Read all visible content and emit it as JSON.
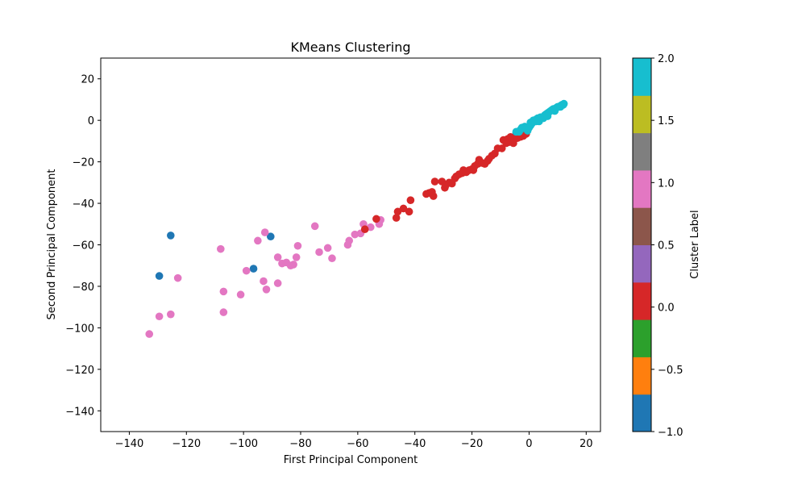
{
  "chart_data": {
    "type": "scatter",
    "title": "KMeans Clustering",
    "xlabel": "First Principal Component",
    "ylabel": "Second Principal Component",
    "xlim": [
      -150,
      25
    ],
    "ylim": [
      -150,
      30
    ],
    "xticks": [
      -140,
      -120,
      -100,
      -80,
      -60,
      -40,
      -20,
      0,
      20
    ],
    "yticks": [
      -140,
      -120,
      -100,
      -80,
      -60,
      -40,
      -20,
      0,
      20
    ],
    "grid": false,
    "colorbar": {
      "label": "Cluster Label",
      "range": [
        -1.0,
        2.0
      ],
      "ticks": [
        -1.0,
        -0.5,
        0.0,
        0.5,
        1.0,
        1.5,
        2.0
      ],
      "tick_labels": [
        "−1.0",
        "−0.5",
        "0.0",
        "0.5",
        "1.0",
        "1.5",
        "2.0"
      ],
      "colors": [
        "#1f77b4",
        "#ff7f0e",
        "#2ca02c",
        "#d62728",
        "#9467bd",
        "#8c564b",
        "#e377c2",
        "#7f7f7f",
        "#bcbd22",
        "#17becf"
      ]
    },
    "cluster_colors": {
      "-1": "#1f77b4",
      "0": "#d62728",
      "1": "#e377c2",
      "2": "#17becf"
    },
    "series": [
      {
        "cluster": -1,
        "points": [
          [
            -125.5,
            -55.5
          ],
          [
            -129.5,
            -75
          ],
          [
            -96.5,
            -71.5
          ],
          [
            -90.5,
            -56
          ],
          [
            -4.5,
            -6
          ]
        ]
      },
      {
        "cluster": 1,
        "points": [
          [
            -133,
            -103
          ],
          [
            -129.5,
            -94.5
          ],
          [
            -125.5,
            -93.5
          ],
          [
            -123,
            -76
          ],
          [
            -108,
            -62
          ],
          [
            -107,
            -82.5
          ],
          [
            -107,
            -92.5
          ],
          [
            -101,
            -84
          ],
          [
            -99,
            -72.5
          ],
          [
            -95,
            -58
          ],
          [
            -92.5,
            -54
          ],
          [
            -93,
            -77.5
          ],
          [
            -92,
            -81.5
          ],
          [
            -88,
            -66
          ],
          [
            -88,
            -78.5
          ],
          [
            -86.5,
            -69
          ],
          [
            -85,
            -68.5
          ],
          [
            -83.5,
            -70
          ],
          [
            -82.5,
            -69.5
          ],
          [
            -81.5,
            -66
          ],
          [
            -81,
            -60.5
          ],
          [
            -75,
            -51
          ],
          [
            -73.5,
            -63.5
          ],
          [
            -70.5,
            -61.5
          ],
          [
            -69,
            -66.5
          ],
          [
            -63.5,
            -60
          ],
          [
            -63,
            -58
          ],
          [
            -61,
            -55
          ],
          [
            -59,
            -54.5
          ],
          [
            -58,
            -50
          ],
          [
            -55.5,
            -51.5
          ],
          [
            -52.5,
            -50
          ],
          [
            -52,
            -48
          ]
        ]
      },
      {
        "cluster": 0,
        "points": [
          [
            -57.5,
            -52.5
          ],
          [
            -53.5,
            -47.5
          ],
          [
            -46.5,
            -47
          ],
          [
            -46,
            -44
          ],
          [
            -44,
            -42.5
          ],
          [
            -42,
            -44
          ],
          [
            -41.5,
            -38.5
          ],
          [
            -36,
            -35.5
          ],
          [
            -35,
            -35
          ],
          [
            -34,
            -34.5
          ],
          [
            -33.5,
            -36.5
          ],
          [
            -33,
            -29.5
          ],
          [
            -30.5,
            -29.5
          ],
          [
            -29.5,
            -32.5
          ],
          [
            -29,
            -31
          ],
          [
            -28,
            -30
          ],
          [
            -27,
            -30.5
          ],
          [
            -26,
            -28
          ],
          [
            -25.5,
            -27
          ],
          [
            -24.5,
            -26
          ],
          [
            -23.5,
            -25.5
          ],
          [
            -23,
            -24
          ],
          [
            -22,
            -25
          ],
          [
            -21,
            -24
          ],
          [
            -20,
            -23.5
          ],
          [
            -19.5,
            -24
          ],
          [
            -19,
            -22
          ],
          [
            -18,
            -21
          ],
          [
            -17.5,
            -19
          ],
          [
            -16.5,
            -20.5
          ],
          [
            -15.5,
            -21
          ],
          [
            -14.5,
            -19.5
          ],
          [
            -14,
            -18.5
          ],
          [
            -13,
            -17
          ],
          [
            -12,
            -16
          ],
          [
            -11,
            -13.5
          ],
          [
            -9,
            -9.5
          ],
          [
            -8,
            -11
          ],
          [
            -7.5,
            -9
          ],
          [
            -7,
            -10.5
          ],
          [
            -6.5,
            -8
          ],
          [
            -6,
            -9.5
          ],
          [
            -5,
            -9
          ],
          [
            -4,
            -8.5
          ],
          [
            -3,
            -8
          ],
          [
            -2,
            -7.5
          ],
          [
            -1,
            -6.5
          ],
          [
            -9.5,
            -13.5
          ],
          [
            -5.5,
            -11
          ]
        ]
      },
      {
        "cluster": 2,
        "points": [
          [
            -4.5,
            -5.5
          ],
          [
            -3.5,
            -5.5
          ],
          [
            -3,
            -4.5
          ],
          [
            -2.5,
            -3.5
          ],
          [
            -2,
            -3.5
          ],
          [
            -1.5,
            -3
          ],
          [
            -1,
            -4
          ],
          [
            -0.5,
            -5
          ],
          [
            0,
            -3.5
          ],
          [
            0.5,
            -2.5
          ],
          [
            1,
            -1.5
          ],
          [
            1.5,
            -0.5
          ],
          [
            2,
            0
          ],
          [
            2.5,
            0.5
          ],
          [
            3,
            1
          ],
          [
            3.5,
            -0.5
          ],
          [
            4,
            1.5
          ],
          [
            4.5,
            1.5
          ],
          [
            5,
            1
          ],
          [
            5.5,
            2.5
          ],
          [
            6,
            3
          ],
          [
            6.5,
            3.5
          ],
          [
            7,
            4
          ],
          [
            7.5,
            4.5
          ],
          [
            8,
            5
          ],
          [
            8.5,
            5.5
          ],
          [
            9,
            5.5
          ],
          [
            9.5,
            6
          ],
          [
            10,
            6.5
          ],
          [
            10.5,
            6.5
          ],
          [
            11,
            7
          ],
          [
            11.5,
            7.5
          ],
          [
            12,
            7.5
          ],
          [
            12.2,
            8
          ],
          [
            0.5,
            -1
          ],
          [
            2.5,
            -0.5
          ],
          [
            6.5,
            2
          ],
          [
            9,
            4.5
          ],
          [
            11,
            6.5
          ],
          [
            1.5,
            0
          ]
        ]
      }
    ]
  }
}
